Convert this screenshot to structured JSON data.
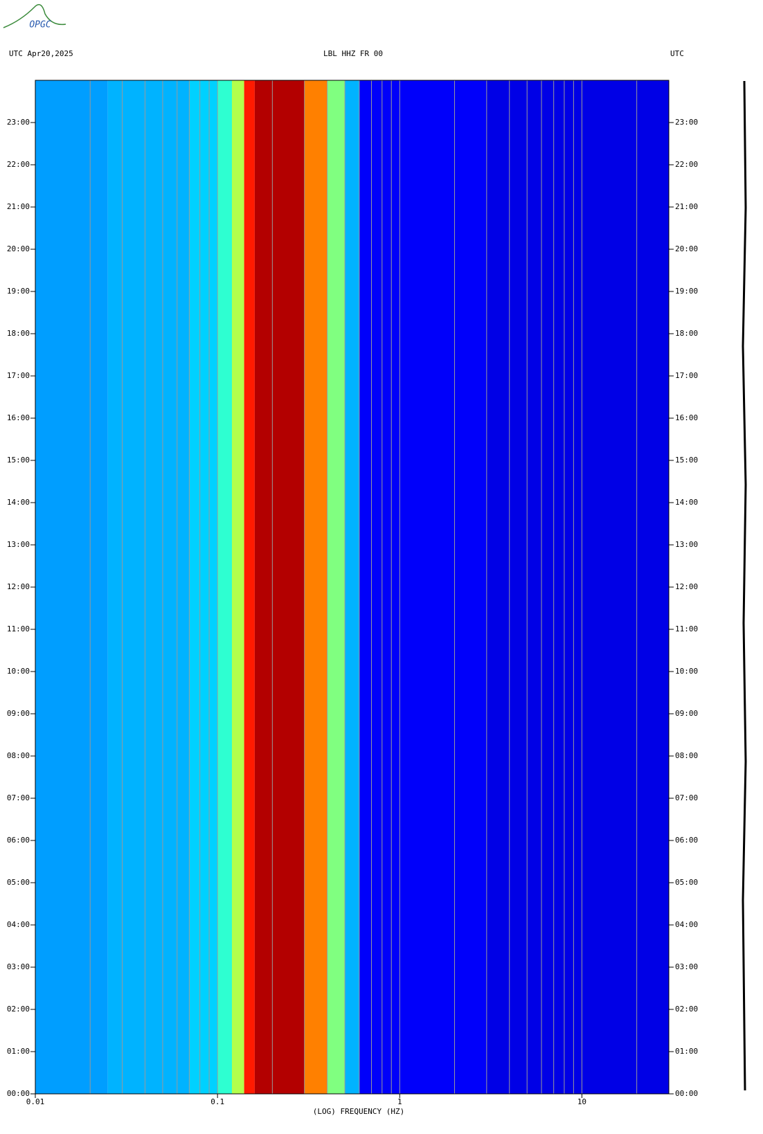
{
  "chart_data": {
    "type": "spectrogram",
    "logo": "OPGC",
    "title_left": "UTC  Apr20,2025",
    "title": "LBL HHZ FR 00",
    "title_right": "UTC",
    "xlabel": "(LOG) FREQUENCY (HZ)",
    "xlog": true,
    "xlim": [
      0.01,
      30
    ],
    "xticks": [
      0.01,
      0.1,
      1,
      10
    ],
    "xgrid": [
      0.02,
      0.03,
      0.04,
      0.05,
      0.06,
      0.07,
      0.08,
      0.09,
      0.1,
      0.2,
      0.3,
      0.4,
      0.5,
      0.6,
      0.7,
      0.8,
      0.9,
      1,
      2,
      3,
      4,
      5,
      6,
      7,
      8,
      9,
      10,
      20
    ],
    "ylim": [
      0,
      24
    ],
    "yticks": [
      {
        "value": 0,
        "label": "00:00"
      },
      {
        "value": 1,
        "label": "01:00"
      },
      {
        "value": 2,
        "label": "02:00"
      },
      {
        "value": 3,
        "label": "03:00"
      },
      {
        "value": 4,
        "label": "04:00"
      },
      {
        "value": 5,
        "label": "05:00"
      },
      {
        "value": 6,
        "label": "06:00"
      },
      {
        "value": 7,
        "label": "07:00"
      },
      {
        "value": 8,
        "label": "08:00"
      },
      {
        "value": 9,
        "label": "09:00"
      },
      {
        "value": 10,
        "label": "10:00"
      },
      {
        "value": 11,
        "label": "11:00"
      },
      {
        "value": 12,
        "label": "12:00"
      },
      {
        "value": 13,
        "label": "13:00"
      },
      {
        "value": 14,
        "label": "14:00"
      },
      {
        "value": 15,
        "label": "15:00"
      },
      {
        "value": 16,
        "label": "16:00"
      },
      {
        "value": 17,
        "label": "17:00"
      },
      {
        "value": 18,
        "label": "18:00"
      },
      {
        "value": 19,
        "label": "19:00"
      },
      {
        "value": 20,
        "label": "20:00"
      },
      {
        "value": 21,
        "label": "21:00"
      },
      {
        "value": 22,
        "label": "22:00"
      },
      {
        "value": 23,
        "label": "23:00"
      }
    ],
    "bin_edges": [
      0.01,
      0.025,
      0.07,
      0.1,
      0.12,
      0.14,
      0.16,
      0.3,
      0.4,
      0.5,
      0.6,
      3,
      30
    ],
    "values": [
      0.28,
      0.3,
      0.33,
      0.42,
      0.55,
      0.85,
      0.95,
      0.75,
      0.5,
      0.3,
      0.12,
      0.1
    ]
  }
}
